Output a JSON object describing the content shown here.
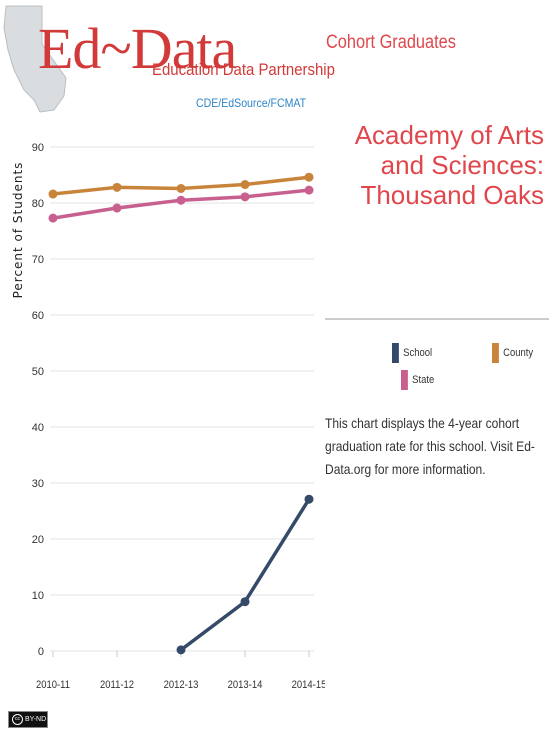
{
  "logo": {
    "main": "Ed~Data",
    "sub": "Education Data Partnership",
    "tagline": "CDE/EdSource/FCMAT"
  },
  "panel": {
    "title": "Cohort Graduates",
    "school_lines": [
      "Academy of Arts",
      "and Sciences:",
      "Thousand Oaks"
    ],
    "legend": [
      {
        "label": "School",
        "color": "#344a68"
      },
      {
        "label": "County",
        "color": "#c8843a"
      },
      {
        "label": "State",
        "color": "#c8608f"
      }
    ],
    "description": "This chart displays the 4-year cohort graduation rate for this school. Visit Ed-Data.org for more information."
  },
  "chart_data": {
    "type": "line",
    "categories": [
      "2010-11",
      "2011-12",
      "2012-13",
      "2013-14",
      "2014-15"
    ],
    "ylabel": "Percent of Students",
    "ylim": [
      0,
      90
    ],
    "yticks": [
      0,
      10,
      20,
      30,
      40,
      50,
      60,
      70,
      80,
      90
    ],
    "grid": true,
    "series": [
      {
        "name": "School",
        "color": "#344a68",
        "values": [
          null,
          null,
          0.2,
          8.8,
          27.1
        ]
      },
      {
        "name": "County",
        "color": "#c8843a",
        "values": [
          81.6,
          82.8,
          82.6,
          83.3,
          84.6
        ]
      },
      {
        "name": "State",
        "color": "#c8608f",
        "values": [
          77.3,
          79.1,
          80.5,
          81.1,
          82.3
        ]
      }
    ]
  },
  "license": {
    "cc": "cc",
    "label": "BY-ND"
  }
}
